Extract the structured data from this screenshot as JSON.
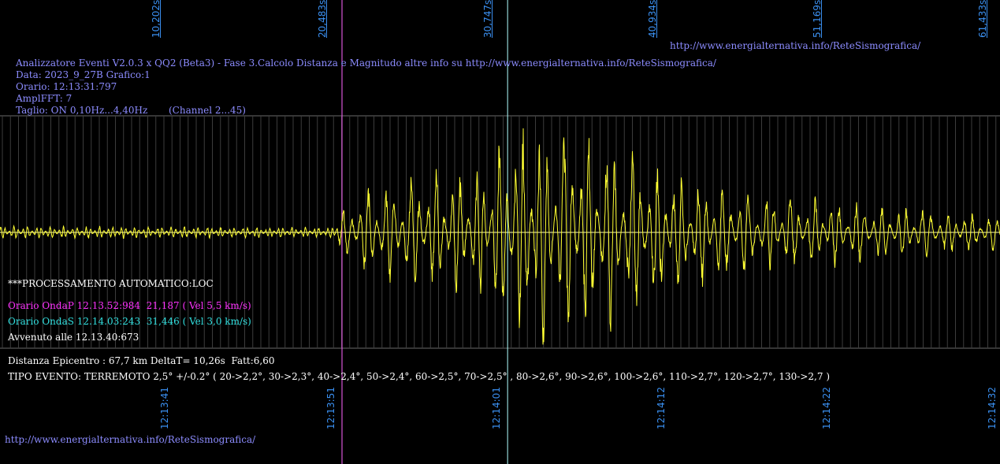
{
  "header": {
    "title_line": "Analizzatore Eventi V2.0.3 x QQ2 (Beta3) - Fase 3.Calcolo Distanza e Magnitudo altre info su http://www.energialternativa.info/ReteSismografica/",
    "data_line": "Data: 2023_9_27B Grafico:1",
    "orario_line": "Orario: 12:13:31:797",
    "ampl_line": "AmplFFT: 7",
    "taglio_line": "Taglio: ON 0,10Hz...4,40Hz       (Channel 2...45)"
  },
  "top_url": "http://www.energialternativa.info/ReteSismografica/",
  "bottom_url": "http://www.energialternativa.info/ReteSismografica/",
  "processing": {
    "title": "***PROCESSAMENTO AUTOMATICO:LOC",
    "onda_p": "Orario OndaP 12.13.52:984  21,187 ( Vel 5,5 km/s)",
    "onda_s": "Orario OndaS 12.14.03:243  31,446 ( Vel 3,0 km/s)",
    "avvenuto": "Avvenuto alle 12.13.40:673",
    "distanza": "Distanza Epicentro : 67,7 km DeltaT= 10,26s  Fatt:6,60",
    "tipo_evento": "TIPO EVENTO: TERREMOTO 2,5° +/-0.2° ( 20->2,2°, 30->2,3°, 40->2,4°, 50->2,4°, 60->2,5°, 70->2,5° , 80->2,6°, 90->2,6°, 100->2,6°, 110->2,7°, 120->2,7°, 130->2,7 )"
  },
  "colors": {
    "background": "#000000",
    "trace": "#ffff33",
    "p_marker": "#ff66ff",
    "s_marker": "#b0ffff",
    "axis_labels": "#3a8ff0",
    "header_text": "#8c8cff",
    "grid": "#6a6a6a"
  },
  "chart_data": {
    "type": "line",
    "title": "",
    "series": [
      {
        "name": "",
        "kind": "seismogram",
        "color": "#ffff33"
      }
    ],
    "x_top_ticks": [
      "10,202s",
      "20,483s",
      "30,747s",
      "40,934s",
      "51,169s",
      "61,433s"
    ],
    "x_top_tick_values": [
      10.202,
      20.483,
      30.747,
      40.934,
      51.169,
      61.433
    ],
    "x_bottom_ticks": [
      "12:13:41",
      "12:13:51",
      "12:14:01",
      "12:14:12",
      "12:14:22",
      "12:14:32"
    ],
    "xlim_seconds": [
      0,
      61.95
    ],
    "markers": [
      {
        "label": "OndaP",
        "time_s": 21.187,
        "color": "#ff66ff"
      },
      {
        "label": "OndaS",
        "time_s": 31.446,
        "color": "#b0ffff"
      }
    ],
    "amplitude_envelope": [
      {
        "t": 0,
        "a": 0.06
      },
      {
        "t": 20.5,
        "a": 0.05
      },
      {
        "t": 21.2,
        "a": 0.2
      },
      {
        "t": 23,
        "a": 0.45
      },
      {
        "t": 27,
        "a": 0.55
      },
      {
        "t": 30,
        "a": 0.6
      },
      {
        "t": 31.5,
        "a": 1.0
      },
      {
        "t": 34,
        "a": 1.0
      },
      {
        "t": 37.5,
        "a": 0.9
      },
      {
        "t": 41,
        "a": 0.6
      },
      {
        "t": 46,
        "a": 0.38
      },
      {
        "t": 52,
        "a": 0.3
      },
      {
        "t": 58,
        "a": 0.22
      },
      {
        "t": 61.95,
        "a": 0.15
      }
    ],
    "grid": true
  }
}
